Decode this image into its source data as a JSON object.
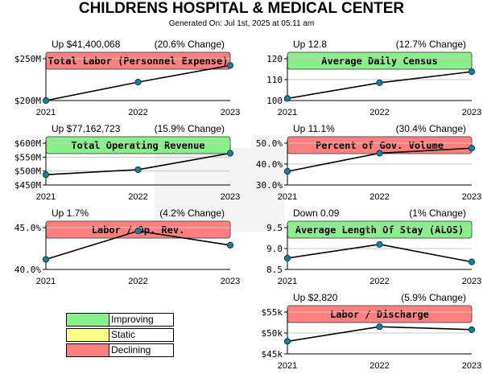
{
  "header": {
    "title": "CHILDRENS HOSPITAL & MEDICAL CENTER",
    "subtitle": "Generated On: Jul 1st, 2025 at 05:11 am"
  },
  "colors": {
    "improving": "#88f088",
    "static": "#ffff88",
    "declining": "#ff7f7f",
    "line": "#000000",
    "point": "#1a7f9e"
  },
  "legend": [
    {
      "label": "Improving",
      "status": "improving"
    },
    {
      "label": "Static",
      "status": "static"
    },
    {
      "label": "Declining",
      "status": "declining"
    }
  ],
  "chart_data": [
    {
      "type": "line",
      "title": "Total Labor (Personnel Expense)",
      "status": "declining",
      "change_value": "Up $41,400,068",
      "change_pct": "(20.6% Change)",
      "categories": [
        "2021",
        "2022",
        "2023"
      ],
      "values": [
        200,
        222,
        242
      ],
      "ylim": [
        200,
        250
      ],
      "yticks": [
        200,
        250
      ],
      "ytick_labels": [
        "$200M",
        "$250M"
      ]
    },
    {
      "type": "line",
      "title": "Average Daily Census",
      "status": "improving",
      "change_value": "Up 12.8",
      "change_pct": "(12.7% Change)",
      "categories": [
        "2021",
        "2022",
        "2023"
      ],
      "values": [
        101,
        108.5,
        113.8
      ],
      "ylim": [
        100,
        120
      ],
      "yticks": [
        100,
        110,
        120
      ],
      "ytick_labels": [
        "100",
        "110",
        "120"
      ]
    },
    {
      "type": "line",
      "title": "Total Operating Revenue",
      "status": "improving",
      "change_value": "Up $77,162,723",
      "change_pct": "(15.9% Change)",
      "categories": [
        "2021",
        "2022",
        "2023"
      ],
      "values": [
        487,
        505,
        564
      ],
      "ylim": [
        450,
        600
      ],
      "yticks": [
        450,
        500,
        550,
        600
      ],
      "ytick_labels": [
        "$450M",
        "$500M",
        "$550M",
        "$600M"
      ]
    },
    {
      "type": "line",
      "title": "Percent of Gov. Volume",
      "status": "declining",
      "change_value": "Up 11.1%",
      "change_pct": "(30.4% Change)",
      "categories": [
        "2021",
        "2022",
        "2023"
      ],
      "values": [
        36.5,
        45.2,
        47.6
      ],
      "ylim": [
        30,
        50
      ],
      "yticks": [
        30,
        40,
        50
      ],
      "ytick_labels": [
        "30.0%",
        "40.0%",
        "50.0%"
      ]
    },
    {
      "type": "line",
      "title": "Labor / Op. Rev.",
      "status": "declining",
      "change_value": "Up 1.7%",
      "change_pct": "(4.2% Change)",
      "categories": [
        "2021",
        "2022",
        "2023"
      ],
      "values": [
        41.2,
        44.6,
        42.9
      ],
      "ylim": [
        40,
        45
      ],
      "yticks": [
        40,
        45
      ],
      "ytick_labels": [
        "40.0%",
        "45.0%"
      ]
    },
    {
      "type": "line",
      "title": "Average Length Of Stay (ALOS)",
      "status": "improving",
      "change_value": "Down 0.09",
      "change_pct": "(1% Change)",
      "categories": [
        "2021",
        "2022",
        "2023"
      ],
      "values": [
        8.77,
        9.1,
        8.68
      ],
      "ylim": [
        8.5,
        9.5
      ],
      "yticks": [
        8.5,
        9.0,
        9.5
      ],
      "ytick_labels": [
        "8.5",
        "9.0",
        "9.5"
      ]
    },
    {
      "type": "line",
      "title": "Labor / Discharge",
      "status": "declining",
      "change_value": "Up $2,820",
      "change_pct": "(5.9% Change)",
      "categories": [
        "2021",
        "2022",
        "2023"
      ],
      "values": [
        48,
        51.5,
        50.8
      ],
      "ylim": [
        45,
        55
      ],
      "yticks": [
        45,
        50,
        55
      ],
      "ytick_labels": [
        "$45k",
        "$50k",
        "$55k"
      ]
    }
  ]
}
